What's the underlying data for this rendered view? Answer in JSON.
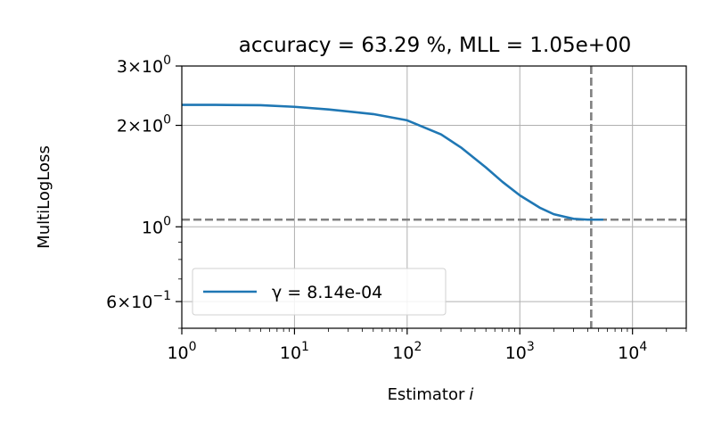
{
  "chart_data": {
    "type": "line",
    "title": "accuracy = 63.29 %, MLL = 1.05e+00",
    "xlabel": "Estimator",
    "xlabel_var": "i",
    "ylabel": "MultiLogLoss",
    "xscale": "log",
    "yscale": "log",
    "xlim": [
      1,
      30000
    ],
    "ylim": [
      0.5,
      3
    ],
    "grid": true,
    "legend_position": "lower-left",
    "x_major_ticks": [
      {
        "value": 1,
        "base": "10",
        "exp": "0"
      },
      {
        "value": 10,
        "base": "10",
        "exp": "1"
      },
      {
        "value": 100,
        "base": "10",
        "exp": "2"
      },
      {
        "value": 1000,
        "base": "10",
        "exp": "3"
      },
      {
        "value": 10000,
        "base": "10",
        "exp": "4"
      }
    ],
    "y_labeled_ticks": [
      {
        "value": 3,
        "mant": "3",
        "base": "10",
        "exp": "0"
      },
      {
        "value": 2,
        "mant": "2",
        "base": "10",
        "exp": "0"
      },
      {
        "value": 1,
        "mant": "",
        "base": "10",
        "exp": "0"
      },
      {
        "value": 0.6,
        "mant": "6",
        "base": "10",
        "exp": "−1"
      }
    ],
    "y_minor_ticks": [
      0.5,
      0.7,
      0.8,
      0.9
    ],
    "series": [
      {
        "name": "γ = 8.14e-04",
        "color": "#1f77b4",
        "x": [
          1,
          2,
          5,
          10,
          20,
          50,
          100,
          200,
          300,
          500,
          700,
          1000,
          1500,
          2000,
          3000,
          4000,
          5500
        ],
        "y": [
          2.3,
          2.3,
          2.295,
          2.27,
          2.23,
          2.16,
          2.07,
          1.88,
          1.72,
          1.5,
          1.36,
          1.24,
          1.14,
          1.09,
          1.056,
          1.05,
          1.05
        ]
      }
    ],
    "reference_lines": {
      "color": "#808080",
      "horizontal_y": 1.05,
      "vertical_x": 4300
    }
  }
}
